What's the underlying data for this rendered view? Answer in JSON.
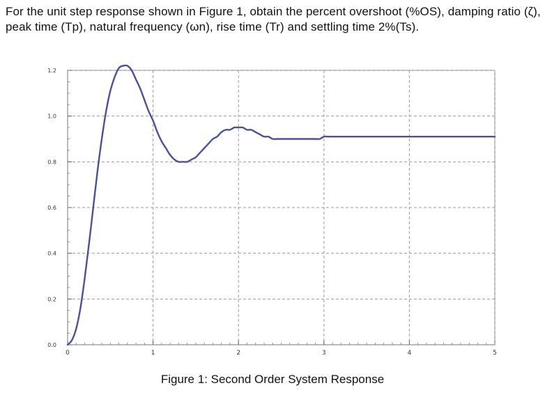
{
  "question": {
    "text": "For the unit step response shown in Figure 1, obtain the percent overshoot (%OS), damping ratio (ζ), peak time (Tp), natural frequency (ωn), rise time (Tr) and settling time 2%(Ts)."
  },
  "figure": {
    "caption": "Figure 1: Second Order System Response"
  },
  "chart_data": {
    "type": "line",
    "title": "",
    "xlabel": "",
    "ylabel": "",
    "xlim": [
      0,
      5
    ],
    "ylim": [
      0,
      1.2
    ],
    "x_ticks": [
      0,
      1,
      2,
      3,
      4,
      5
    ],
    "x_tick_labels": [
      "0",
      "1",
      "2",
      "3",
      "4",
      "5"
    ],
    "y_ticks": [
      0.0,
      0.2,
      0.4,
      0.6,
      0.8,
      1.0,
      1.2
    ],
    "y_tick_labels": [
      "0.0",
      "0.2",
      "0.4",
      "0.6",
      "0.8",
      "1.0",
      "1.2"
    ],
    "grid": true,
    "grid_style": "dashed",
    "legend": "none",
    "line_color": "#4b4f9c",
    "series": [
      {
        "x": [
          0,
          0.05,
          0.1,
          0.15,
          0.2,
          0.25,
          0.3,
          0.35,
          0.4,
          0.45,
          0.5,
          0.55,
          0.6,
          0.65,
          0.7,
          0.75,
          0.8,
          0.85,
          0.9,
          0.95,
          1.0,
          1.05,
          1.1,
          1.15,
          1.2,
          1.25,
          1.3,
          1.35,
          1.4,
          1.45,
          1.5,
          1.55,
          1.6,
          1.65,
          1.7,
          1.75,
          1.8,
          1.85,
          1.9,
          1.95,
          2.0,
          2.05,
          2.1,
          2.15,
          2.2,
          2.25,
          2.3,
          2.35,
          2.4,
          2.45,
          2.5,
          2.55,
          2.6,
          2.65,
          2.7,
          2.75,
          2.8,
          2.85,
          2.9,
          2.95,
          3.0,
          3.05,
          3.1,
          3.15,
          3.2,
          3.25,
          3.3,
          3.35,
          3.4,
          3.45,
          3.5,
          3.55,
          3.6,
          3.65,
          3.7,
          3.75,
          3.8,
          3.85,
          3.9,
          3.95,
          4.0,
          4.1,
          4.2,
          4.3,
          4.4,
          4.5,
          4.6,
          4.7,
          4.8,
          4.9,
          5.0
        ],
        "y": [
          0.0,
          0.02,
          0.07,
          0.16,
          0.29,
          0.44,
          0.6,
          0.76,
          0.9,
          1.02,
          1.11,
          1.17,
          1.21,
          1.22,
          1.22,
          1.2,
          1.16,
          1.12,
          1.07,
          1.02,
          0.98,
          0.93,
          0.89,
          0.86,
          0.83,
          0.81,
          0.8,
          0.8,
          0.8,
          0.81,
          0.82,
          0.84,
          0.86,
          0.88,
          0.9,
          0.91,
          0.93,
          0.94,
          0.94,
          0.95,
          0.95,
          0.95,
          0.94,
          0.94,
          0.93,
          0.92,
          0.91,
          0.91,
          0.9,
          0.9,
          0.9,
          0.9,
          0.9,
          0.9,
          0.9,
          0.9,
          0.9,
          0.9,
          0.9,
          0.9,
          0.91,
          0.91,
          0.91,
          0.91,
          0.91,
          0.91,
          0.91,
          0.91,
          0.91,
          0.91,
          0.91,
          0.91,
          0.91,
          0.91,
          0.91,
          0.91,
          0.91,
          0.91,
          0.91,
          0.91,
          0.91,
          0.91,
          0.91,
          0.91,
          0.91,
          0.91,
          0.91,
          0.91,
          0.91,
          0.91,
          0.91
        ]
      }
    ]
  }
}
